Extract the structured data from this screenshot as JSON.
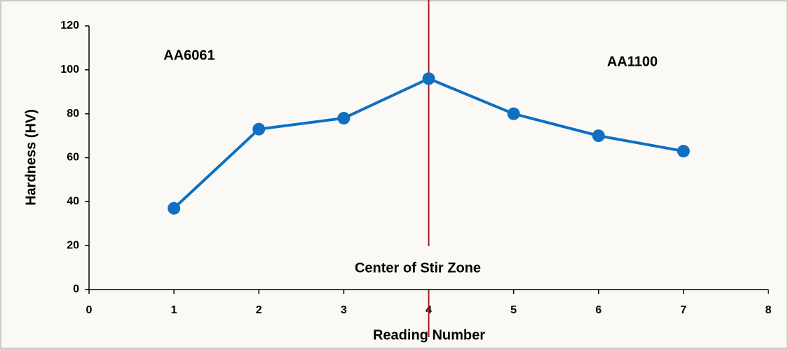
{
  "chart_data": {
    "type": "line",
    "x_label": "Reading Number",
    "y_label": "Hardness (HV)",
    "annotations": [
      "AA6061",
      "AA1100",
      "Center of Stir Zone"
    ],
    "x": [
      1,
      2,
      3,
      4,
      5,
      6,
      7
    ],
    "series": [
      {
        "name": "Hardness",
        "color": "#0f6fc0",
        "values": [
          37,
          73,
          78,
          96,
          80,
          70,
          63
        ]
      }
    ],
    "xlim": [
      0,
      8
    ],
    "xticks": [
      0,
      1,
      2,
      3,
      4,
      5,
      6,
      7,
      8
    ],
    "ylim": [
      0,
      120
    ],
    "yticks": [
      0,
      20,
      40,
      60,
      80,
      100,
      120
    ],
    "vline_x": 4,
    "vline_color": "#a31818",
    "grid": false
  }
}
